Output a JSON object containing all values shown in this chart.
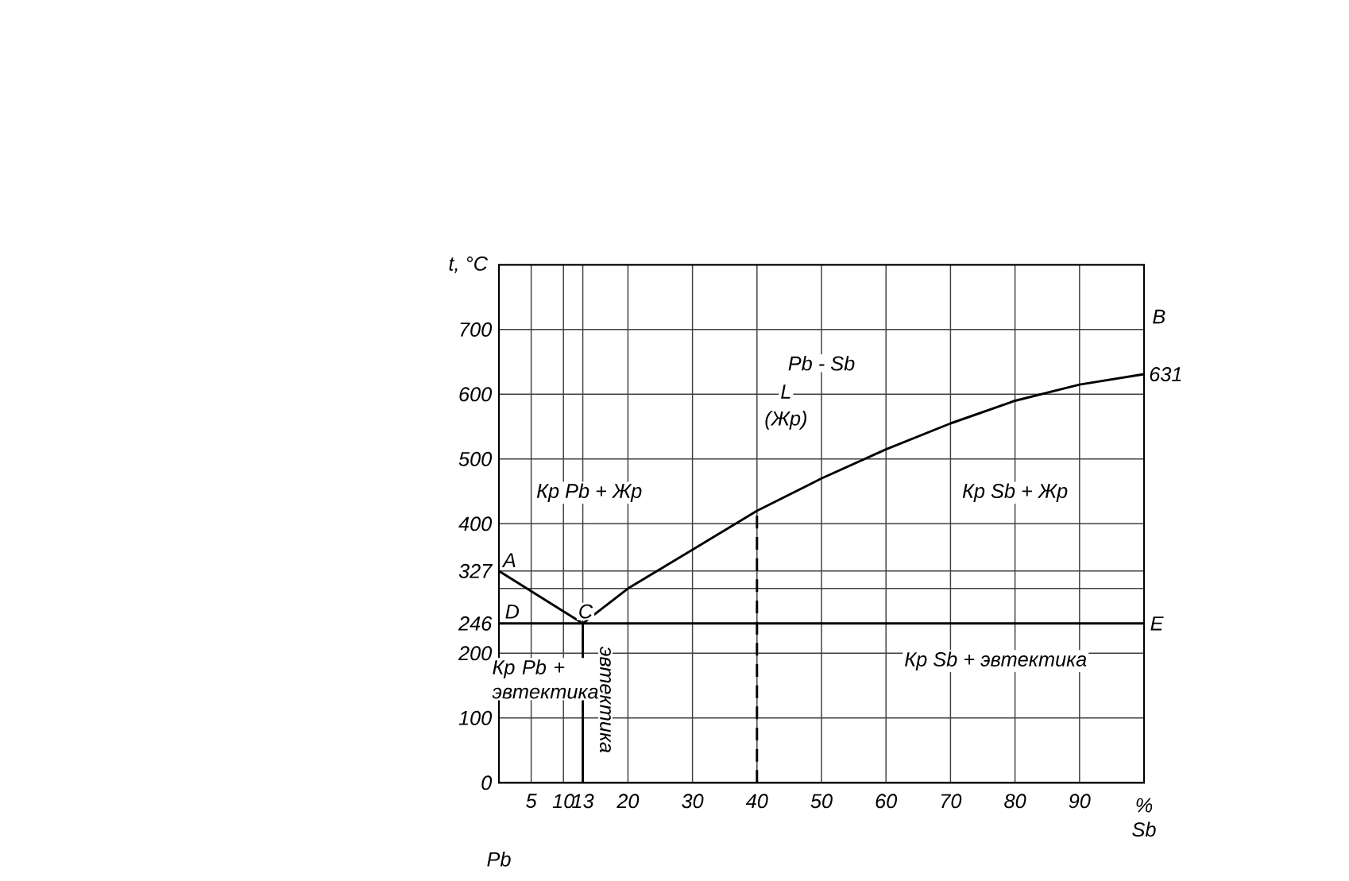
{
  "chart_data": {
    "type": "line",
    "xlabel": "% Sb",
    "ylabel": "t, °C",
    "xlim": [
      0,
      100
    ],
    "ylim": [
      0,
      800
    ],
    "xticks": [
      5,
      10,
      13,
      20,
      30,
      40,
      50,
      60,
      70,
      80,
      90
    ],
    "yticks": [
      0,
      100,
      200,
      246,
      {
        "value": 300,
        "label": null
      },
      327,
      400,
      500,
      600,
      700
    ],
    "grid": true,
    "marker": "none",
    "series": [
      {
        "color": "#000000",
        "line_style": "solid",
        "x": [
          0,
          13
        ],
        "values": [
          327,
          246
        ]
      },
      {
        "color": "#000000",
        "line_style": "solid",
        "x": [
          13,
          20,
          30,
          40,
          50,
          60,
          70,
          80,
          90,
          100
        ],
        "values": [
          246,
          300,
          360,
          420,
          470,
          515,
          555,
          590,
          615,
          631
        ]
      },
      {
        "color": "#000000",
        "line_style": "solid",
        "x": [
          0,
          100
        ],
        "values": [
          246,
          246
        ]
      },
      {
        "color": "#000000",
        "line_style": "solid",
        "x": [
          13,
          13
        ],
        "values": [
          0,
          246
        ]
      },
      {
        "color": "#000000",
        "line_style": "dashed",
        "x": [
          40,
          40
        ],
        "values": [
          0,
          420
        ]
      }
    ],
    "annotations": [
      {
        "text": "A",
        "x": 0,
        "y": 327
      },
      "B",
      {
        "text": "631",
        "x": 100,
        "y": 631
      },
      {
        "text": "C",
        "x": 13,
        "y": 246
      },
      {
        "text": "D",
        "x": 0,
        "y": 246
      },
      {
        "text": "E",
        "x": 100,
        "y": 246
      },
      "Pb - Sb",
      "L",
      "(Жр)",
      "Кр Pb + Жр",
      "Кр Sb + Жр",
      "Кр Pb + эвтектика",
      "эвтектика",
      "Кр Sb + эвтектика",
      "Pb"
    ]
  }
}
